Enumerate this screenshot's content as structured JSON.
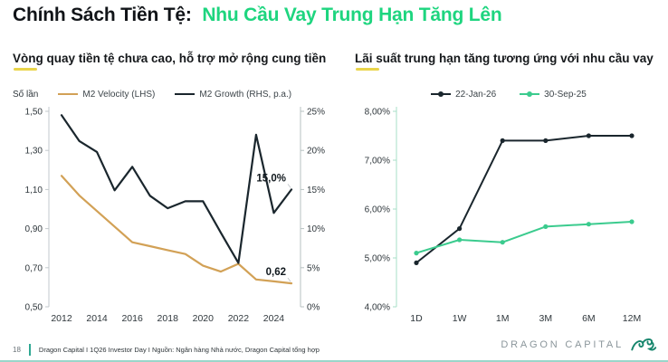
{
  "header": {
    "title_black": "Chính Sách Tiền Tệ:",
    "title_green": "Nhu Cầu Vay Trung Hạn Tăng Lên"
  },
  "colors": {
    "accent_green": "#1ed57f",
    "underline_yellow": "#e9d44a",
    "gold_line": "#d2a156",
    "dark_line": "#1a262d",
    "green_line": "#3bcb8e",
    "footer_teal": "#2fa893",
    "logo_teal": "#16856c"
  },
  "chart_data": [
    {
      "type": "line",
      "title": "Vòng quay tiền tệ chưa cao, hỗ trợ mở rộng cung tiền",
      "ylabel_left": "Số lần",
      "x": [
        2012,
        2013,
        2014,
        2015,
        2016,
        2017,
        2018,
        2019,
        2020,
        2021,
        2022,
        2023,
        2024,
        2025
      ],
      "x_tick_labels": [
        "2012",
        "2014",
        "2016",
        "2018",
        "2020",
        "2022",
        "2024"
      ],
      "left_axis": {
        "min": 0.5,
        "max": 1.5,
        "tick_values": [
          1.5,
          1.3,
          1.1,
          0.9,
          0.7,
          0.5
        ],
        "tick_labels": [
          "1,50",
          "1,30",
          "1,10",
          "0,90",
          "0,70",
          "0,50"
        ]
      },
      "right_axis": {
        "min": 0,
        "max": 25,
        "tick_values": [
          25,
          20,
          15,
          10,
          5,
          0
        ],
        "tick_labels": [
          "25%",
          "20%",
          "15%",
          "10%",
          "5%",
          "0%"
        ]
      },
      "series": [
        {
          "name": "M2 Velocity (LHS)",
          "axis": "left",
          "color": "#d2a156",
          "values": [
            1.17,
            1.07,
            0.99,
            0.91,
            0.83,
            0.81,
            0.79,
            0.77,
            0.71,
            0.68,
            0.72,
            0.64,
            0.63,
            0.62
          ]
        },
        {
          "name": "M2 Growth (RHS, p.a.)",
          "axis": "right",
          "color": "#1a262d",
          "values": [
            24.5,
            21.2,
            19.8,
            14.9,
            17.9,
            14.2,
            12.6,
            13.5,
            13.5,
            9.5,
            5.6,
            22.0,
            12.0,
            15.0
          ]
        }
      ],
      "annotations": [
        {
          "text": "15,0%",
          "series": 1,
          "point": 13
        },
        {
          "text": "0,62",
          "series": 0,
          "point": 13
        }
      ],
      "legend_position": "top",
      "grid": false
    },
    {
      "type": "line",
      "title": "Lãi suất trung hạn tăng tương ứng với nhu cầu vay",
      "categories": [
        "1D",
        "1W",
        "1M",
        "3M",
        "6M",
        "12M"
      ],
      "y_axis": {
        "min": 4,
        "max": 8,
        "tick_values": [
          8,
          7,
          6,
          5,
          4
        ],
        "tick_labels": [
          "8,00%",
          "7,00%",
          "6,00%",
          "5,00%",
          "4,00%"
        ]
      },
      "series": [
        {
          "name": "22-Jan-26",
          "color": "#1a262d",
          "values": [
            4.9,
            5.6,
            7.4,
            7.4,
            7.5,
            7.5
          ]
        },
        {
          "name": "30-Sep-25",
          "color": "#3bcb8e",
          "values": [
            5.1,
            5.37,
            5.32,
            5.64,
            5.69,
            5.74
          ]
        }
      ],
      "markers": true,
      "legend_position": "top",
      "grid": false
    }
  ],
  "footer": {
    "page_number": "18",
    "source": "Dragon Capital I 1Q26 Investor Day I Nguồn: Ngân hàng Nhà nước, Dragon Capital tổng hợp",
    "brand": "DRAGON CAPITAL"
  }
}
